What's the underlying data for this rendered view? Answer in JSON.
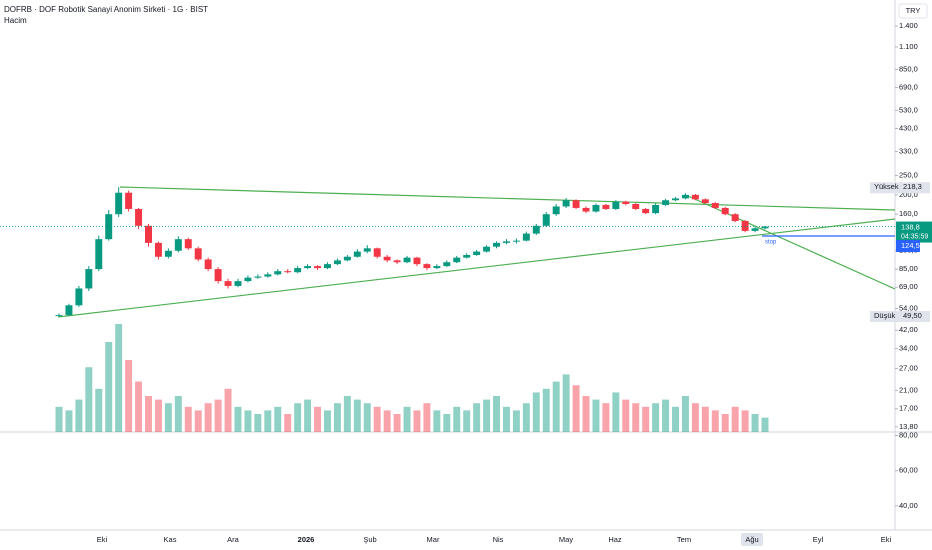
{
  "header": {
    "title": "DOFRB · DOF Robotik Sanayi Anonim Sirketi · 1G · BIST",
    "indicator": "Hacim",
    "currency": "TRY"
  },
  "chart_data": {
    "type": "candlestick",
    "log_scale": true,
    "ylim": [
      13,
      1890
    ],
    "yticks": [
      {
        "value": 1400,
        "label": "1.400"
      },
      {
        "value": 1100,
        "label": "1.100"
      },
      {
        "value": 850,
        "label": "850,0"
      },
      {
        "value": 690,
        "label": "690,0"
      },
      {
        "value": 530,
        "label": "530,0"
      },
      {
        "value": 430,
        "label": "430,0"
      },
      {
        "value": 330,
        "label": "330,0"
      },
      {
        "value": 250,
        "label": "250,0"
      },
      {
        "value": 200,
        "label": "200,0"
      },
      {
        "value": 160,
        "label": "160,0"
      },
      {
        "value": 105,
        "label": "105,0"
      },
      {
        "value": 85,
        "label": "85,00"
      },
      {
        "value": 69,
        "label": "69,00"
      },
      {
        "value": 54,
        "label": "54,00"
      },
      {
        "value": 42,
        "label": "42,00"
      },
      {
        "value": 34,
        "label": "34,00"
      },
      {
        "value": 27,
        "label": "27,00"
      },
      {
        "value": 21,
        "label": "21,00"
      },
      {
        "value": 17,
        "label": "17,00"
      },
      {
        "value": 13.8,
        "label": "13,80"
      }
    ],
    "y2lim": [
      32,
      82
    ],
    "y2ticks": [
      {
        "value": 80,
        "label": "80,00"
      },
      {
        "value": 60,
        "label": "60,00"
      },
      {
        "value": 40,
        "label": "40,00"
      }
    ],
    "x_labels": [
      "Eki",
      "Kas",
      "Ara",
      "2026",
      "Şub",
      "Mar",
      "Nis",
      "May",
      "Haz",
      "Tem",
      "Ağu",
      "Eyl",
      "Eki"
    ],
    "up_color": "#089981",
    "down_color": "#f23645",
    "open": [
      49.8,
      50,
      56,
      68,
      85,
      120,
      160,
      205,
      170,
      140,
      115,
      98,
      105,
      120,
      108,
      95,
      85,
      74,
      70,
      74,
      77,
      78,
      80,
      83,
      82,
      86,
      88,
      86,
      90,
      94,
      98,
      104,
      108,
      98,
      94,
      92,
      97,
      90,
      86,
      88,
      92,
      97,
      100,
      104,
      110,
      115,
      117,
      118,
      128,
      140,
      160,
      175,
      188,
      172,
      165,
      178,
      170,
      185,
      180,
      170,
      162,
      178,
      188,
      192,
      200,
      190,
      182,
      172,
      160,
      148,
      132,
      136
    ],
    "high": [
      51,
      57,
      70,
      88,
      125,
      168,
      218.3,
      210,
      172,
      143,
      117,
      108,
      124,
      122,
      110,
      97,
      87,
      76,
      76,
      79,
      80,
      82,
      85,
      85,
      88,
      90,
      89,
      92,
      96,
      100,
      107,
      112,
      109,
      100,
      95,
      99,
      98,
      91,
      90,
      94,
      99,
      102,
      106,
      112,
      117,
      120,
      121,
      131,
      143,
      164,
      180,
      193,
      190,
      175,
      181,
      180,
      188,
      187,
      182,
      172,
      181,
      191,
      195,
      204,
      202,
      192,
      184,
      174,
      162,
      150,
      138,
      140
    ],
    "low": [
      49.5,
      49.6,
      55,
      66,
      83,
      118,
      155,
      165,
      135,
      110,
      95,
      96,
      103,
      106,
      93,
      83,
      72,
      68,
      69,
      73,
      76,
      77,
      79,
      81,
      81,
      85,
      84,
      85,
      89,
      93,
      97,
      102,
      96,
      92,
      90,
      91,
      88,
      84,
      85,
      87,
      91,
      96,
      99,
      103,
      108,
      113,
      114,
      117,
      126,
      138,
      157,
      172,
      170,
      162,
      163,
      168,
      168,
      177,
      168,
      160,
      160,
      176,
      186,
      190,
      188,
      180,
      170,
      158,
      146,
      130,
      130,
      134
    ],
    "close": [
      50,
      56,
      68,
      85,
      120,
      160,
      205,
      170,
      140,
      115,
      98,
      105,
      120,
      108,
      95,
      85,
      74,
      70,
      74,
      77,
      78,
      80,
      83,
      82,
      86,
      88,
      86,
      90,
      94,
      98,
      104,
      108,
      98,
      94,
      92,
      97,
      90,
      86,
      88,
      92,
      97,
      100,
      104,
      110,
      115,
      117,
      118,
      128,
      140,
      160,
      175,
      188,
      172,
      165,
      178,
      170,
      185,
      180,
      170,
      162,
      178,
      188,
      192,
      200,
      190,
      182,
      172,
      160,
      148,
      132,
      136,
      138.8
    ],
    "volume": [
      7,
      6,
      9,
      18,
      12,
      25,
      30,
      20,
      14,
      10,
      9,
      8,
      10,
      7,
      6,
      8,
      9,
      12,
      7,
      6,
      5,
      6,
      7,
      5,
      8,
      9,
      7,
      6,
      8,
      10,
      9,
      8,
      7,
      6,
      5,
      7,
      6,
      8,
      6,
      5,
      7,
      6,
      8,
      9,
      10,
      7,
      6,
      8,
      11,
      12,
      14,
      16,
      13,
      10,
      9,
      8,
      11,
      9,
      8,
      7,
      8,
      9,
      7,
      10,
      8,
      7,
      6,
      5,
      7,
      6,
      5,
      4
    ],
    "high_marker": {
      "text": "Yüksek",
      "value": 218.3,
      "label": "218,3"
    },
    "low_marker": {
      "text": "Düşük",
      "value": 49.5,
      "label": "49,50"
    },
    "last_price": {
      "value": 138.8,
      "label": "138,8",
      "countdown": "04:35:59"
    },
    "stop_line": {
      "value": 124.5,
      "label": "124,5",
      "text": "stop",
      "color": "#2962ff"
    }
  }
}
